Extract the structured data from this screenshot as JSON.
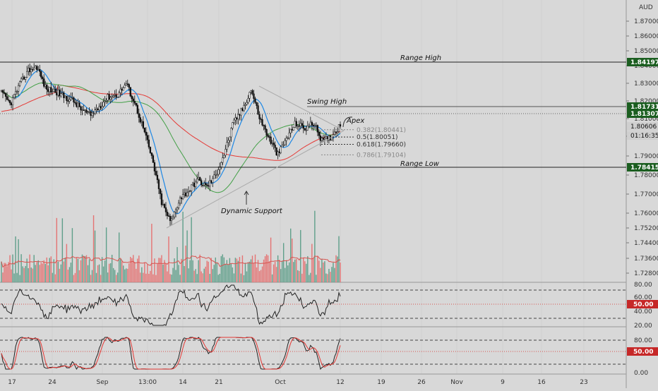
{
  "chart_data": {
    "type": "candlestick",
    "currency": "AUD",
    "ylim": [
      1.72,
      1.876
    ],
    "y_ticks": [
      "1.87000",
      "1.86000",
      "1.85000",
      "1.84000",
      "1.83000",
      "1.82000",
      "1.81000",
      "1.80000",
      "1.79000",
      "1.78000",
      "1.77000",
      "1.76000",
      "1.75200",
      "1.74400",
      "1.73600",
      "1.72800"
    ],
    "x_ticks": [
      "17",
      "24",
      "Sep",
      "13:00",
      "14",
      "21",
      "Oct",
      "12",
      "19",
      "26",
      "Nov",
      "9",
      "16",
      "23"
    ],
    "price_levels": [
      {
        "name": "Range High",
        "value": "1.84197",
        "color": "#1b5e20"
      },
      {
        "name": "",
        "value": "1.81731",
        "color": "#1b5e20"
      },
      {
        "name": "",
        "value": "1.81307",
        "color": "#1b5e20"
      },
      {
        "name": "",
        "value": "1.80606",
        "color": "#cfcfcf"
      },
      {
        "name": "",
        "value": "01:16:35",
        "color": "#cfcfcf"
      },
      {
        "name": "Range Low",
        "value": "1.78415",
        "color": "#1b5e20"
      }
    ],
    "fib_levels": [
      {
        "label": "0.382(1.80441)",
        "value": 1.80441,
        "color": "#888888"
      },
      {
        "label": "0.5(1.80051)",
        "value": 1.80051,
        "color": "#333333"
      },
      {
        "label": "0.618(1.79660)",
        "value": 1.7966,
        "color": "#333333"
      },
      {
        "label": "0.786(1.79104)",
        "value": 1.79104,
        "color": "#888888"
      }
    ],
    "annotations": [
      "Range High",
      "Swing High",
      "Apex",
      "Range Low",
      "Dynamic Support"
    ],
    "close_path": [
      1.824,
      1.818,
      1.828,
      1.836,
      1.838,
      1.826,
      1.825,
      1.822,
      1.82,
      1.815,
      1.812,
      1.817,
      1.822,
      1.823,
      1.829,
      1.818,
      1.804,
      1.787,
      1.765,
      1.755,
      1.768,
      1.772,
      1.778,
      1.774,
      1.78,
      1.792,
      1.808,
      1.815,
      1.826,
      1.81,
      1.8,
      1.791,
      1.8,
      1.808,
      1.805,
      1.808,
      1.798,
      1.801,
      1.807
    ],
    "oscillators": [
      {
        "name": "rsi",
        "ticks": [
          "80.00",
          "60.00",
          "40.00",
          "20.00"
        ],
        "badge": "50.00"
      },
      {
        "name": "stoch",
        "ticks": [
          "80.00",
          "50.00",
          "0.00"
        ],
        "badge": "50.00"
      }
    ]
  }
}
